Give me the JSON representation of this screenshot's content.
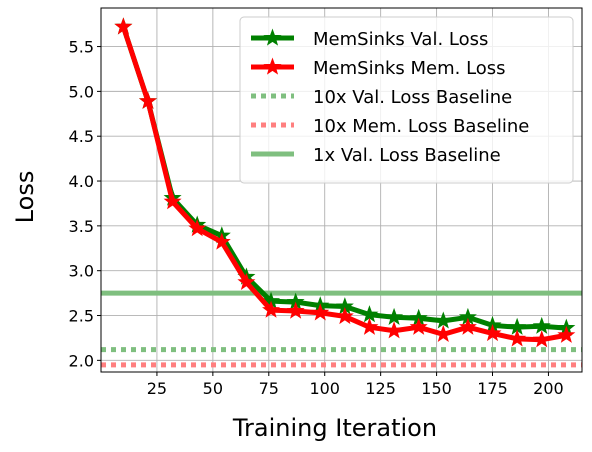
{
  "chart_data": {
    "type": "line",
    "xlabel": "Training Iteration",
    "ylabel": "Loss",
    "xlim": [
      0,
      215
    ],
    "ylim": [
      1.87,
      5.93
    ],
    "x_ticks": [
      25,
      50,
      75,
      100,
      125,
      150,
      175,
      200
    ],
    "y_ticks": [
      2.0,
      2.5,
      3.0,
      3.5,
      4.0,
      4.5,
      5.0,
      5.5
    ],
    "x_tick_labels": [
      "25",
      "50",
      "75",
      "100",
      "125",
      "150",
      "175",
      "200"
    ],
    "y_tick_labels": [
      "2.0",
      "2.5",
      "3.0",
      "3.5",
      "4.0",
      "4.5",
      "5.0",
      "5.5"
    ],
    "grid": true,
    "legend_position": "top-right",
    "x": [
      10,
      21,
      32,
      43,
      54,
      65,
      76,
      87,
      98,
      109,
      120,
      131,
      142,
      153,
      164,
      175,
      186,
      197,
      208
    ],
    "series": [
      {
        "name": "MemSinks Val. Loss",
        "color": "#008000",
        "style": "solid-star",
        "values": [
          5.72,
          4.89,
          3.81,
          3.51,
          3.39,
          2.93,
          2.66,
          2.65,
          2.61,
          2.6,
          2.51,
          2.48,
          2.47,
          2.44,
          2.48,
          2.39,
          2.37,
          2.38,
          2.36
        ]
      },
      {
        "name": "MemSinks Mem. Loss",
        "color": "#ff0000",
        "style": "solid-star",
        "values": [
          5.72,
          4.89,
          3.77,
          3.47,
          3.32,
          2.87,
          2.56,
          2.55,
          2.53,
          2.49,
          2.37,
          2.33,
          2.37,
          2.29,
          2.37,
          2.3,
          2.24,
          2.23,
          2.28
        ]
      }
    ],
    "baselines": [
      {
        "name": "10x Val. Loss Baseline",
        "color": "#7fbf7f",
        "style": "dotted",
        "value": 2.12
      },
      {
        "name": "10x Mem. Loss Baseline",
        "color": "#ff7f7f",
        "style": "dotted",
        "value": 1.95
      },
      {
        "name": "1x Val. Loss Baseline",
        "color": "#7fbf7f",
        "style": "solid",
        "value": 2.75
      }
    ]
  }
}
